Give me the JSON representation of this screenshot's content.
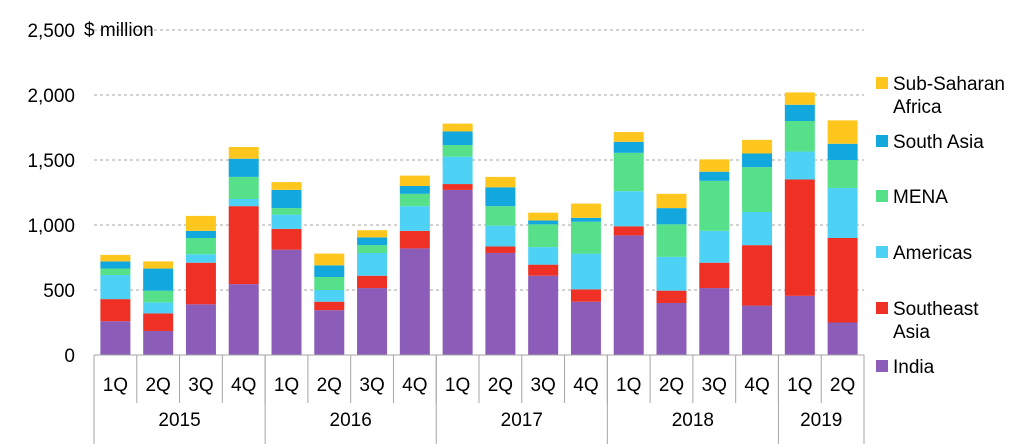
{
  "chart_data": {
    "type": "bar",
    "stacked": true,
    "unit_label": "$ million",
    "ylim": [
      0,
      2500
    ],
    "yticks": [
      "0",
      "500",
      "1,000",
      "1,500",
      "2,000",
      "2,500"
    ],
    "ytick_values": [
      0,
      500,
      1000,
      1500,
      2000,
      2500
    ],
    "grid": true,
    "legend_position": "right",
    "quarters": [
      "1Q",
      "2Q",
      "3Q",
      "4Q",
      "1Q",
      "2Q",
      "3Q",
      "4Q",
      "1Q",
      "2Q",
      "3Q",
      "4Q",
      "1Q",
      "2Q",
      "3Q",
      "4Q",
      "1Q",
      "2Q"
    ],
    "years": [
      {
        "label": "2015",
        "count": 4
      },
      {
        "label": "2016",
        "count": 4
      },
      {
        "label": "2017",
        "count": 4
      },
      {
        "label": "2018",
        "count": 4
      },
      {
        "label": "2019",
        "count": 2
      }
    ],
    "series": [
      {
        "name": "India",
        "color": "#8B5DB8",
        "values": [
          260,
          185,
          390,
          545,
          810,
          345,
          515,
          820,
          1270,
          785,
          610,
          410,
          920,
          400,
          515,
          380,
          455,
          250
        ]
      },
      {
        "name": "Southeast Asia",
        "color": "#EE3124",
        "values": [
          170,
          135,
          320,
          600,
          160,
          65,
          95,
          135,
          45,
          50,
          85,
          95,
          70,
          95,
          195,
          465,
          895,
          650
        ]
      },
      {
        "name": "Americas",
        "color": "#4DD2F5",
        "values": [
          185,
          85,
          65,
          55,
          110,
          90,
          175,
          190,
          210,
          160,
          135,
          275,
          270,
          260,
          245,
          255,
          215,
          385
        ]
      },
      {
        "name": "MENA",
        "color": "#55E089",
        "values": [
          50,
          90,
          125,
          170,
          50,
          100,
          60,
          95,
          90,
          150,
          175,
          245,
          295,
          250,
          385,
          345,
          235,
          215
        ]
      },
      {
        "name": "South Asia",
        "color": "#12A8DE",
        "values": [
          55,
          170,
          55,
          140,
          140,
          90,
          60,
          60,
          105,
          145,
          30,
          30,
          85,
          125,
          70,
          105,
          125,
          125
        ]
      },
      {
        "name": "Sub-Saharan Africa",
        "color": "#FFC61E",
        "values": [
          50,
          55,
          115,
          90,
          60,
          90,
          55,
          80,
          60,
          80,
          60,
          110,
          75,
          110,
          95,
          105,
          95,
          180
        ]
      }
    ],
    "legend": [
      "Sub-Saharan\nAfrica",
      "South Asia",
      "MENA",
      "Americas",
      "Southeast\nAsia",
      "India"
    ]
  }
}
